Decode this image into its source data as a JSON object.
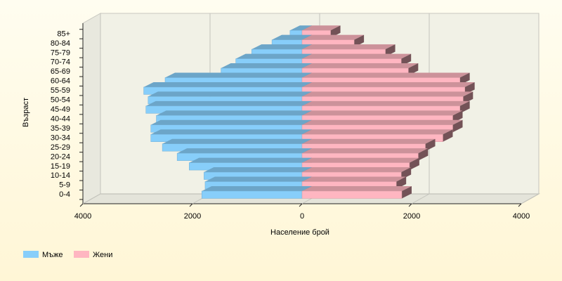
{
  "chart_data": {
    "type": "bar",
    "x_label": "Население брой",
    "y_label": "Възраст",
    "categories": [
      "0-4",
      "5-9",
      "10-14",
      "15-19",
      "20-24",
      "25-29",
      "30-34",
      "35-39",
      "40-44",
      "45-49",
      "50-54",
      "55-59",
      "60-64",
      "65-69",
      "70-74",
      "75-79",
      "80-84",
      "85+"
    ],
    "series": [
      {
        "name": "Мъже",
        "color": "#87cefa",
        "values": [
          -1830,
          -1770,
          -1790,
          -2060,
          -2280,
          -2550,
          -2760,
          -2760,
          -2660,
          -2850,
          -2810,
          -2890,
          -2500,
          -1480,
          -1210,
          -920,
          -550,
          -220
        ]
      },
      {
        "name": "Жени",
        "color": "#ffb6c1",
        "values": [
          1820,
          1720,
          1810,
          1960,
          2120,
          2250,
          2570,
          2750,
          2750,
          2880,
          2940,
          2970,
          2880,
          1940,
          1810,
          1520,
          950,
          520
        ]
      }
    ],
    "xlim": [
      -4000,
      4000
    ],
    "xticks": [
      {
        "value": -4000,
        "label": "4000"
      },
      {
        "value": -2000,
        "label": "2000"
      },
      0,
      2000,
      4000
    ],
    "grid": true
  }
}
